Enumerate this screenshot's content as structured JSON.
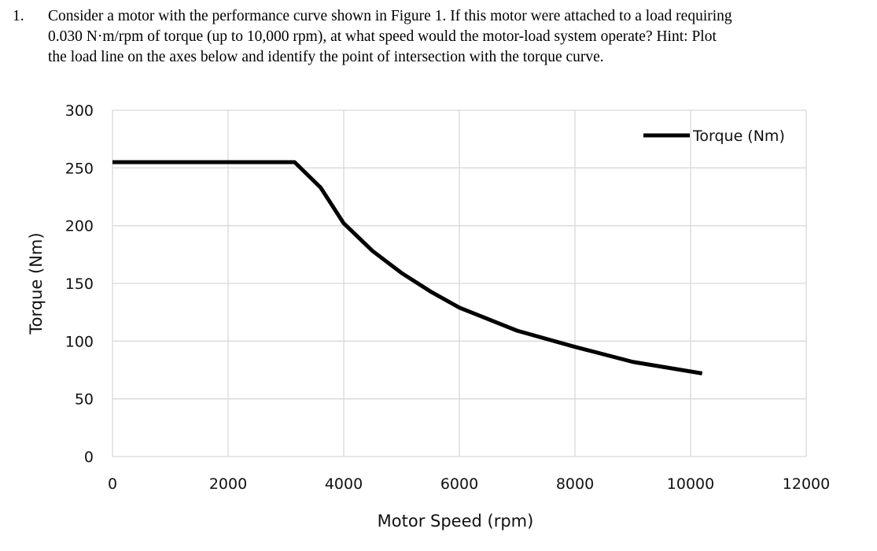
{
  "question": {
    "number": "1.",
    "lines": [
      "Consider a motor with the performance curve shown in Figure 1. If this motor were attached to a load requiring",
      "0.030 N·m/rpm of torque (up to 10,000 rpm), at what speed would the motor-load system operate? Hint: Plot",
      "the load line on the axes below and identify the point of intersection with the torque curve."
    ]
  },
  "chart_data": {
    "type": "line",
    "xlabel": "Motor Speed (rpm)",
    "ylabel": "Torque (Nm)",
    "xlim": [
      0,
      12000
    ],
    "ylim": [
      0,
      300
    ],
    "x_ticks": [
      0,
      2000,
      4000,
      6000,
      8000,
      10000,
      12000
    ],
    "y_ticks": [
      0,
      50,
      100,
      150,
      200,
      250,
      300
    ],
    "grid": true,
    "legend_position": "top-right",
    "series": [
      {
        "name": "Torque (Nm)",
        "color": "#000000",
        "x": [
          0,
          3150,
          3600,
          4000,
          4500,
          5000,
          5500,
          6000,
          7000,
          8000,
          9000,
          10200
        ],
        "y": [
          255,
          255,
          233,
          202,
          178,
          159,
          143,
          129,
          109,
          95,
          82,
          72
        ]
      }
    ]
  }
}
